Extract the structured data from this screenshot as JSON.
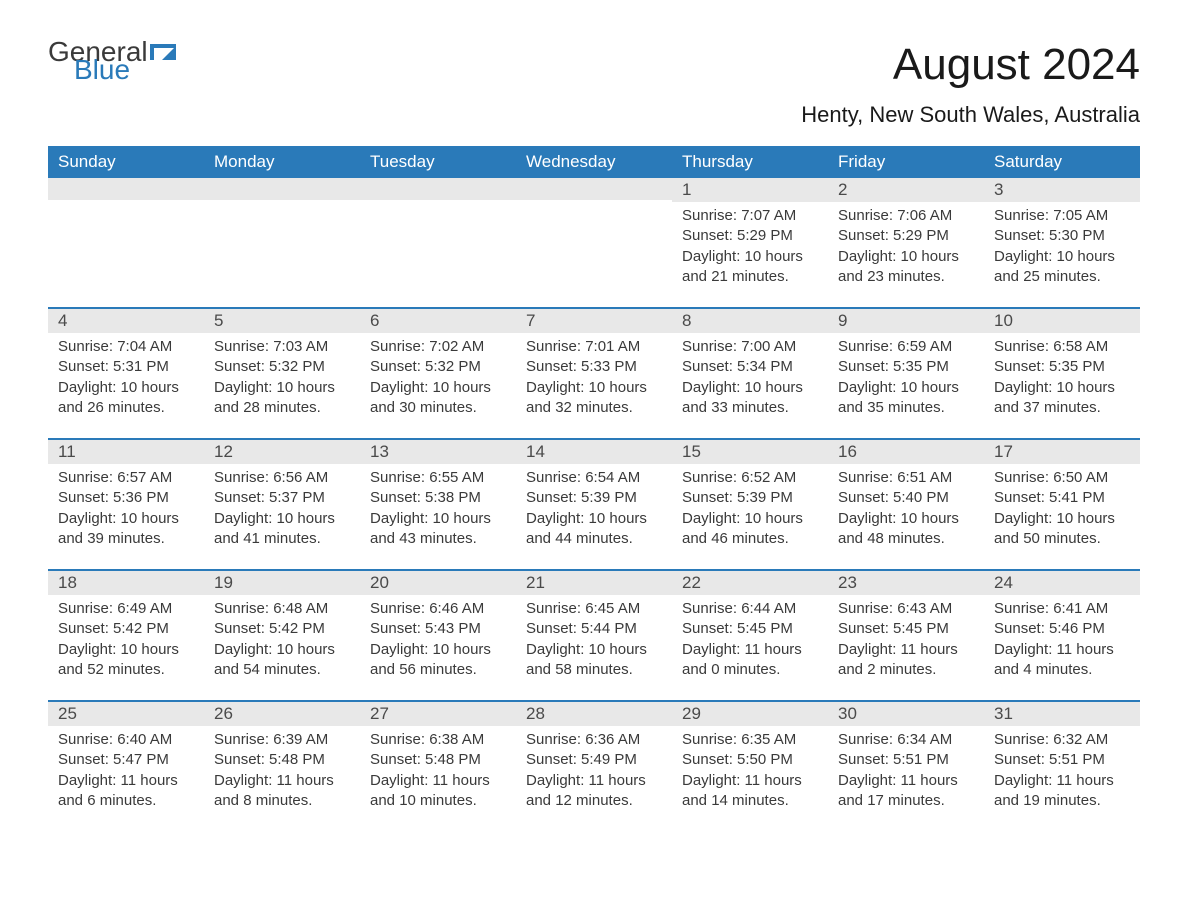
{
  "logo": {
    "text1": "General",
    "text2": "Blue",
    "icon_color": "#2a7ab9"
  },
  "title": "August 2024",
  "location": "Henty, New South Wales, Australia",
  "colors": {
    "header_bg": "#2a7ab9",
    "header_text": "#ffffff",
    "daynum_bg": "#e8e8e8",
    "daynum_text": "#4a4a4a",
    "body_text": "#3a3a3a",
    "row_border": "#2a7ab9",
    "page_bg": "#ffffff"
  },
  "typography": {
    "title_fontsize": 44,
    "location_fontsize": 22,
    "header_fontsize": 17,
    "daynum_fontsize": 17,
    "data_fontsize": 15
  },
  "columns": [
    "Sunday",
    "Monday",
    "Tuesday",
    "Wednesday",
    "Thursday",
    "Friday",
    "Saturday"
  ],
  "weeks": [
    [
      null,
      null,
      null,
      null,
      {
        "n": "1",
        "sunrise": "7:07 AM",
        "sunset": "5:29 PM",
        "daylight": "10 hours and 21 minutes."
      },
      {
        "n": "2",
        "sunrise": "7:06 AM",
        "sunset": "5:29 PM",
        "daylight": "10 hours and 23 minutes."
      },
      {
        "n": "3",
        "sunrise": "7:05 AM",
        "sunset": "5:30 PM",
        "daylight": "10 hours and 25 minutes."
      }
    ],
    [
      {
        "n": "4",
        "sunrise": "7:04 AM",
        "sunset": "5:31 PM",
        "daylight": "10 hours and 26 minutes."
      },
      {
        "n": "5",
        "sunrise": "7:03 AM",
        "sunset": "5:32 PM",
        "daylight": "10 hours and 28 minutes."
      },
      {
        "n": "6",
        "sunrise": "7:02 AM",
        "sunset": "5:32 PM",
        "daylight": "10 hours and 30 minutes."
      },
      {
        "n": "7",
        "sunrise": "7:01 AM",
        "sunset": "5:33 PM",
        "daylight": "10 hours and 32 minutes."
      },
      {
        "n": "8",
        "sunrise": "7:00 AM",
        "sunset": "5:34 PM",
        "daylight": "10 hours and 33 minutes."
      },
      {
        "n": "9",
        "sunrise": "6:59 AM",
        "sunset": "5:35 PM",
        "daylight": "10 hours and 35 minutes."
      },
      {
        "n": "10",
        "sunrise": "6:58 AM",
        "sunset": "5:35 PM",
        "daylight": "10 hours and 37 minutes."
      }
    ],
    [
      {
        "n": "11",
        "sunrise": "6:57 AM",
        "sunset": "5:36 PM",
        "daylight": "10 hours and 39 minutes."
      },
      {
        "n": "12",
        "sunrise": "6:56 AM",
        "sunset": "5:37 PM",
        "daylight": "10 hours and 41 minutes."
      },
      {
        "n": "13",
        "sunrise": "6:55 AM",
        "sunset": "5:38 PM",
        "daylight": "10 hours and 43 minutes."
      },
      {
        "n": "14",
        "sunrise": "6:54 AM",
        "sunset": "5:39 PM",
        "daylight": "10 hours and 44 minutes."
      },
      {
        "n": "15",
        "sunrise": "6:52 AM",
        "sunset": "5:39 PM",
        "daylight": "10 hours and 46 minutes."
      },
      {
        "n": "16",
        "sunrise": "6:51 AM",
        "sunset": "5:40 PM",
        "daylight": "10 hours and 48 minutes."
      },
      {
        "n": "17",
        "sunrise": "6:50 AM",
        "sunset": "5:41 PM",
        "daylight": "10 hours and 50 minutes."
      }
    ],
    [
      {
        "n": "18",
        "sunrise": "6:49 AM",
        "sunset": "5:42 PM",
        "daylight": "10 hours and 52 minutes."
      },
      {
        "n": "19",
        "sunrise": "6:48 AM",
        "sunset": "5:42 PM",
        "daylight": "10 hours and 54 minutes."
      },
      {
        "n": "20",
        "sunrise": "6:46 AM",
        "sunset": "5:43 PM",
        "daylight": "10 hours and 56 minutes."
      },
      {
        "n": "21",
        "sunrise": "6:45 AM",
        "sunset": "5:44 PM",
        "daylight": "10 hours and 58 minutes."
      },
      {
        "n": "22",
        "sunrise": "6:44 AM",
        "sunset": "5:45 PM",
        "daylight": "11 hours and 0 minutes."
      },
      {
        "n": "23",
        "sunrise": "6:43 AM",
        "sunset": "5:45 PM",
        "daylight": "11 hours and 2 minutes."
      },
      {
        "n": "24",
        "sunrise": "6:41 AM",
        "sunset": "5:46 PM",
        "daylight": "11 hours and 4 minutes."
      }
    ],
    [
      {
        "n": "25",
        "sunrise": "6:40 AM",
        "sunset": "5:47 PM",
        "daylight": "11 hours and 6 minutes."
      },
      {
        "n": "26",
        "sunrise": "6:39 AM",
        "sunset": "5:48 PM",
        "daylight": "11 hours and 8 minutes."
      },
      {
        "n": "27",
        "sunrise": "6:38 AM",
        "sunset": "5:48 PM",
        "daylight": "11 hours and 10 minutes."
      },
      {
        "n": "28",
        "sunrise": "6:36 AM",
        "sunset": "5:49 PM",
        "daylight": "11 hours and 12 minutes."
      },
      {
        "n": "29",
        "sunrise": "6:35 AM",
        "sunset": "5:50 PM",
        "daylight": "11 hours and 14 minutes."
      },
      {
        "n": "30",
        "sunrise": "6:34 AM",
        "sunset": "5:51 PM",
        "daylight": "11 hours and 17 minutes."
      },
      {
        "n": "31",
        "sunrise": "6:32 AM",
        "sunset": "5:51 PM",
        "daylight": "11 hours and 19 minutes."
      }
    ]
  ],
  "labels": {
    "sunrise": "Sunrise:",
    "sunset": "Sunset:",
    "daylight": "Daylight:"
  }
}
